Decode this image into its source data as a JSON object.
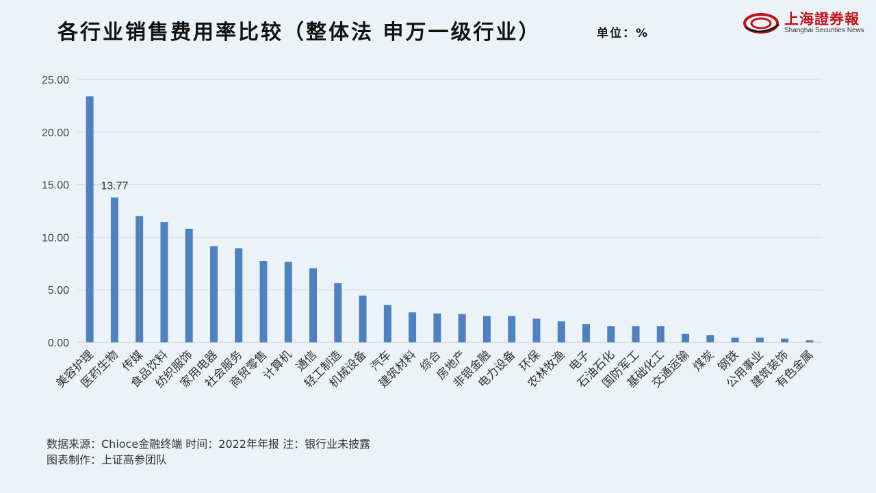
{
  "header": {
    "title": "各行业销售费用率比较（整体法 申万一级行业）",
    "unit": "单位：%"
  },
  "logo": {
    "cn": "上海證券報",
    "en": "Shanghai Securities News",
    "color": "#c0141c"
  },
  "footer": {
    "line1": "数据来源：Chioce金融终端 时间：2022年年报 注：银行业未披露",
    "line2": "图表制作：上证高参团队"
  },
  "chart_data": {
    "type": "bar",
    "categories": [
      "美容护理",
      "医药生物",
      "传媒",
      "食品饮料",
      "纺织服饰",
      "家用电器",
      "社会服务",
      "商贸零售",
      "计算机",
      "通信",
      "轻工制造",
      "机械设备",
      "汽车",
      "建筑材料",
      "综合",
      "房地产",
      "非银金融",
      "电力设备",
      "环保",
      "农林牧渔",
      "电子",
      "石油石化",
      "国防军工",
      "基础化工",
      "交通运输",
      "煤炭",
      "钢铁",
      "公用事业",
      "建筑装饰",
      "有色金属"
    ],
    "values": [
      23.4,
      13.77,
      12.0,
      11.45,
      10.8,
      9.15,
      8.95,
      7.75,
      7.65,
      7.05,
      5.65,
      4.45,
      3.55,
      2.85,
      2.75,
      2.7,
      2.5,
      2.5,
      2.25,
      2.0,
      1.75,
      1.55,
      1.55,
      1.55,
      0.8,
      0.7,
      0.45,
      0.45,
      0.35,
      0.2
    ],
    "data_labels": [
      {
        "category": "医药生物",
        "text": "13.77"
      }
    ],
    "ylim": [
      0,
      25
    ],
    "yticks": [
      "0.00",
      "5.00",
      "10.00",
      "15.00",
      "20.00",
      "25.00"
    ],
    "grid": true,
    "bar_color": "#4f81bd",
    "grid_color": "#d4d9de"
  }
}
